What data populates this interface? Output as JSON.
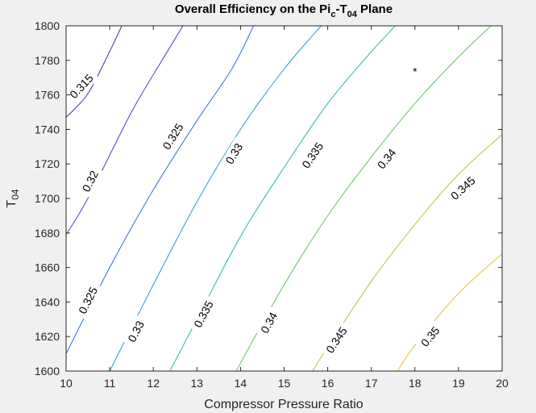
{
  "chart_data": {
    "type": "contour",
    "title": {
      "prefix": "Overall Efficiency on the Pi",
      "sub1": "c",
      "middle": "-T",
      "sub2": "04",
      "suffix": " Plane"
    },
    "xlabel": "Compressor Pressure Ratio",
    "ylabel": {
      "main": "T",
      "sub": "04"
    },
    "xlim": [
      10,
      20
    ],
    "ylim": [
      1600,
      1800
    ],
    "xticks": [
      "10",
      "11",
      "12",
      "13",
      "14",
      "15",
      "16",
      "17",
      "18",
      "19",
      "20"
    ],
    "yticks": [
      "1600",
      "1620",
      "1640",
      "1660",
      "1680",
      "1700",
      "1720",
      "1740",
      "1760",
      "1780",
      "1800"
    ],
    "colors": {
      "0.315": "#3d2a9e",
      "0.32": "#3943c6",
      "0.325": "#2f6fd8",
      "0.33": "#1f99d5",
      "0.335": "#1fb6b0",
      "0.34": "#5fc45a",
      "0.345": "#b5c236",
      "0.35": "#e3c12a"
    },
    "contours": [
      {
        "level": "0.315",
        "points": [
          [
            10,
            1747
          ],
          [
            10.48,
            1760
          ],
          [
            10.9,
            1780
          ],
          [
            11.28,
            1800
          ]
        ]
      },
      {
        "level": "0.32",
        "points": [
          [
            10,
            1679
          ],
          [
            10.5,
            1700
          ],
          [
            11.5,
            1750
          ],
          [
            12.2,
            1780
          ],
          [
            12.68,
            1800
          ]
        ]
      },
      {
        "level": "0.325",
        "points": [
          [
            10,
            1610
          ],
          [
            11,
            1660
          ],
          [
            12,
            1705
          ],
          [
            13,
            1745
          ],
          [
            13.8,
            1775
          ],
          [
            14.3,
            1800
          ]
        ]
      },
      {
        "level": "0.33",
        "points": [
          [
            11,
            1600
          ],
          [
            12,
            1650
          ],
          [
            13,
            1698
          ],
          [
            14,
            1740
          ],
          [
            15,
            1775
          ],
          [
            15.85,
            1800
          ]
        ]
      },
      {
        "level": "0.335",
        "points": [
          [
            12.38,
            1600
          ],
          [
            13,
            1630
          ],
          [
            14,
            1678
          ],
          [
            15,
            1718
          ],
          [
            16,
            1755
          ],
          [
            17,
            1785
          ],
          [
            17.55,
            1800
          ]
        ]
      },
      {
        "level": "0.34",
        "points": [
          [
            13.9,
            1600
          ],
          [
            15,
            1650
          ],
          [
            16,
            1690
          ],
          [
            17,
            1724
          ],
          [
            18,
            1755
          ],
          [
            19,
            1782
          ],
          [
            20,
            1806
          ]
        ]
      },
      {
        "level": "0.345",
        "points": [
          [
            15.65,
            1600
          ],
          [
            16,
            1614
          ],
          [
            17,
            1652
          ],
          [
            18,
            1685
          ],
          [
            19,
            1714
          ],
          [
            20,
            1737
          ]
        ]
      },
      {
        "level": "0.35",
        "points": [
          [
            17.6,
            1600
          ],
          [
            18,
            1615
          ],
          [
            19,
            1645
          ],
          [
            20,
            1668
          ]
        ]
      }
    ],
    "labels": [
      {
        "text": "0.315",
        "x": 10.35,
        "y": 1765,
        "level": "0.315"
      },
      {
        "text": "0.32",
        "x": 10.55,
        "y": 1710,
        "level": "0.32"
      },
      {
        "text": "0.325",
        "x": 10.5,
        "y": 1641,
        "level": "0.325"
      },
      {
        "text": "0.325",
        "x": 12.45,
        "y": 1736,
        "level": "0.325"
      },
      {
        "text": "0.33",
        "x": 11.6,
        "y": 1623,
        "level": "0.33"
      },
      {
        "text": "0.33",
        "x": 13.85,
        "y": 1726,
        "level": "0.33"
      },
      {
        "text": "0.335",
        "x": 13.15,
        "y": 1633,
        "level": "0.335"
      },
      {
        "text": "0.335",
        "x": 15.65,
        "y": 1725,
        "level": "0.335"
      },
      {
        "text": "0.34",
        "x": 14.65,
        "y": 1628,
        "level": "0.34"
      },
      {
        "text": "0.34",
        "x": 17.35,
        "y": 1723,
        "level": "0.34"
      },
      {
        "text": "0.345",
        "x": 16.2,
        "y": 1618,
        "level": "0.345"
      },
      {
        "text": "0.345",
        "x": 19.1,
        "y": 1706,
        "level": "0.345"
      },
      {
        "text": "0.35",
        "x": 18.35,
        "y": 1620,
        "level": "0.35"
      }
    ],
    "marker": {
      "symbol": "*",
      "x": 18,
      "y": 1775
    }
  }
}
